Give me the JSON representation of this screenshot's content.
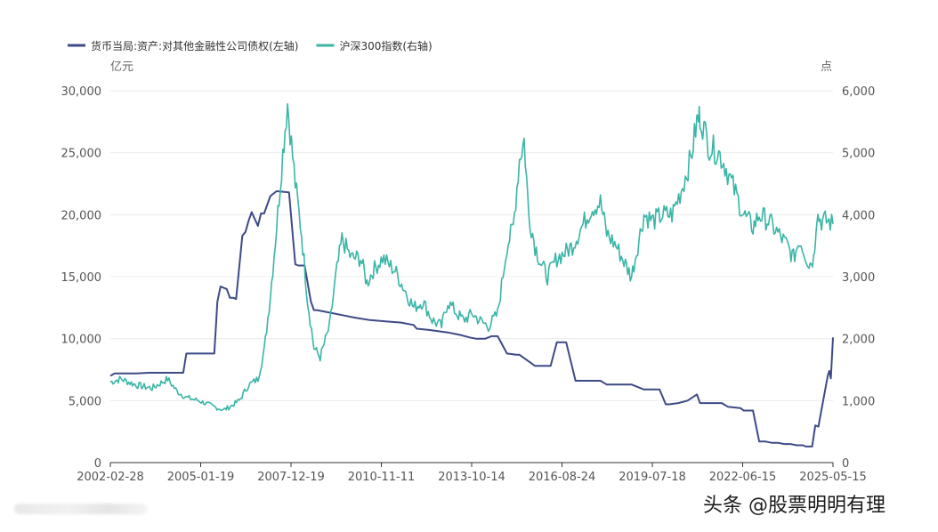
{
  "chart_data": {
    "type": "line",
    "legend": [
      {
        "name": "货币当局:资产:对其他金融性公司债权(左轴)",
        "color": "#3d4a86"
      },
      {
        "name": "沪深300指数(右轴)",
        "color": "#3ab5a6"
      }
    ],
    "y_left": {
      "unit": "亿元",
      "ticks": [
        "0",
        "5,000",
        "10,000",
        "15,000",
        "20,000",
        "25,000",
        "30,000"
      ],
      "ylim": [
        0,
        30000
      ]
    },
    "y_right": {
      "unit": "点",
      "ticks": [
        "0",
        "1,000",
        "2,000",
        "3,000",
        "4,000",
        "5,000",
        "6,000"
      ],
      "ylim": [
        0,
        6000
      ]
    },
    "x_ticks": [
      "2002-02-28",
      "2005-01-19",
      "2007-12-19",
      "2010-11-11",
      "2013-10-14",
      "2016-08-24",
      "2019-07-18",
      "2022-06-15",
      "2025-05-15"
    ],
    "xlim": [
      2002.16,
      2025.37
    ],
    "grid": true,
    "legend_position": "top-left",
    "series": [
      {
        "name": "货币当局:资产:对其他金融性公司债权(左轴)",
        "axis": "left",
        "color": "#3d4a86",
        "x": [
          2002.16,
          2002.3,
          2002.6,
          2003.0,
          2003.4,
          2004.0,
          2004.5,
          2004.6,
          2005.3,
          2005.5,
          2005.6,
          2005.7,
          2005.9,
          2006.0,
          2006.1,
          2006.2,
          2006.4,
          2006.5,
          2006.6,
          2006.7,
          2006.9,
          2007.0,
          2007.1,
          2007.3,
          2007.5,
          2007.9,
          2008.1,
          2008.2,
          2008.4,
          2008.6,
          2008.7,
          2008.8,
          2009.2,
          2009.6,
          2010.0,
          2010.5,
          2011.0,
          2011.5,
          2011.9,
          2012.0,
          2012.4,
          2013.0,
          2013.4,
          2013.7,
          2013.9,
          2014.2,
          2014.4,
          2014.6,
          2014.9,
          2015.2,
          2015.3,
          2015.8,
          2015.9,
          2016.3,
          2016.5,
          2016.8,
          2017.1,
          2017.4,
          2017.9,
          2018.1,
          2018.6,
          2018.9,
          2019.2,
          2019.3,
          2019.6,
          2019.8,
          2020.0,
          2020.1,
          2020.4,
          2020.7,
          2021.0,
          2021.1,
          2021.5,
          2021.6,
          2021.8,
          2022.0,
          2022.4,
          2022.5,
          2022.8,
          2023.0,
          2023.2,
          2023.4,
          2023.6,
          2023.8,
          2024.0,
          2024.2,
          2024.4,
          2024.5,
          2024.7,
          2024.8,
          2024.9,
          2025.2,
          2025.25,
          2025.3,
          2025.37
        ],
        "values": [
          7000,
          7200,
          7200,
          7200,
          7250,
          7250,
          7250,
          8800,
          8800,
          8800,
          13000,
          14200,
          14000,
          13300,
          13300,
          13200,
          18300,
          18600,
          19500,
          20200,
          19100,
          20100,
          20100,
          21500,
          21900,
          21800,
          16000,
          15900,
          15900,
          13000,
          12300,
          12300,
          12100,
          11900,
          11700,
          11500,
          11400,
          11300,
          11100,
          10800,
          10700,
          10500,
          10300,
          10100,
          10000,
          10000,
          10200,
          10200,
          8800,
          8700,
          8700,
          7800,
          7800,
          7800,
          9700,
          9700,
          6600,
          6600,
          6600,
          6300,
          6300,
          6300,
          6000,
          5900,
          5900,
          5900,
          4700,
          4700,
          4800,
          5000,
          5500,
          4800,
          4800,
          4800,
          4800,
          4500,
          4400,
          4200,
          4200,
          1700,
          1700,
          1600,
          1600,
          1500,
          1500,
          1400,
          1400,
          1300,
          1300,
          3000,
          2900,
          7000,
          7400,
          6800,
          10100
        ]
      },
      {
        "name": "沪深300指数(右轴)",
        "axis": "right",
        "color": "#3ab5a6",
        "x": [
          2002.16,
          2002.5,
          2003.0,
          2003.5,
          2004.0,
          2004.3,
          2004.6,
          2005.0,
          2005.5,
          2005.8,
          2006.0,
          2006.3,
          2006.6,
          2006.9,
          2007.1,
          2007.3,
          2007.5,
          2007.7,
          2007.85,
          2008.1,
          2008.3,
          2008.5,
          2008.7,
          2008.9,
          2009.2,
          2009.4,
          2009.6,
          2009.9,
          2010.2,
          2010.4,
          2010.6,
          2010.9,
          2011.3,
          2011.6,
          2011.9,
          2012.2,
          2012.5,
          2012.8,
          2013.0,
          2013.3,
          2013.5,
          2013.8,
          2014.0,
          2014.3,
          2014.6,
          2014.9,
          2015.1,
          2015.3,
          2015.45,
          2015.6,
          2015.8,
          2016.0,
          2016.2,
          2016.5,
          2016.8,
          2017.0,
          2017.3,
          2017.6,
          2017.9,
          2018.1,
          2018.4,
          2018.7,
          2018.9,
          2019.1,
          2019.3,
          2019.6,
          2019.9,
          2020.2,
          2020.5,
          2020.8,
          2021.0,
          2021.1,
          2021.4,
          2021.7,
          2021.9,
          2022.2,
          2022.5,
          2022.8,
          2023.0,
          2023.3,
          2023.6,
          2023.9,
          2024.1,
          2024.3,
          2024.6,
          2024.75,
          2024.85,
          2025.0,
          2025.2,
          2025.37
        ],
        "values": [
          1300,
          1350,
          1250,
          1200,
          1350,
          1150,
          1050,
          1000,
          900,
          850,
          900,
          1000,
          1250,
          1350,
          1800,
          2700,
          3800,
          5000,
          5800,
          4500,
          3700,
          2600,
          1850,
          1700,
          2200,
          3000,
          3600,
          3300,
          3300,
          2900,
          3100,
          3300,
          3100,
          2800,
          2500,
          2600,
          2300,
          2200,
          2600,
          2400,
          2300,
          2400,
          2300,
          2200,
          2400,
          3500,
          3800,
          4900,
          5200,
          4000,
          3500,
          3200,
          3000,
          3300,
          3400,
          3500,
          3800,
          4100,
          4200,
          3700,
          3500,
          3200,
          3000,
          3500,
          4000,
          3900,
          4000,
          4000,
          4400,
          4900,
          5500,
          5600,
          5100,
          5000,
          4800,
          4400,
          4000,
          3800,
          4000,
          3900,
          3700,
          3500,
          3300,
          3600,
          3200,
          3300,
          4000,
          3900,
          3900,
          3850
        ]
      }
    ]
  },
  "watermark": "头条 @股票明明有理"
}
